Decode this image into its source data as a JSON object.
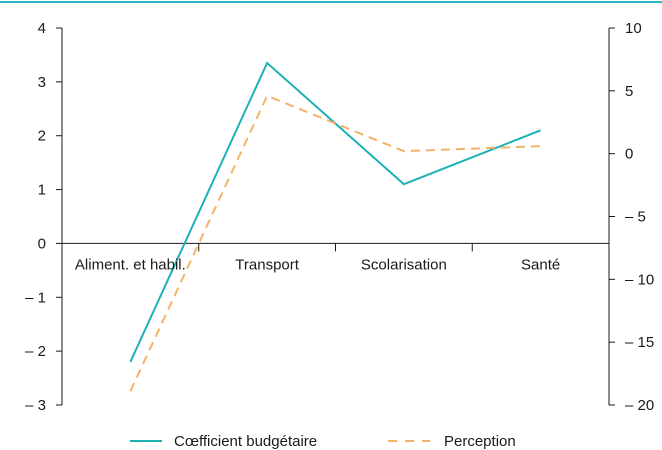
{
  "colors": {
    "frame": "#2ab7c4",
    "series1": "#1bb1b5",
    "series2": "#f4b366",
    "axis": "#1a1a1a"
  },
  "chart_data": {
    "type": "line",
    "categories": [
      "Aliment. et habil.",
      "Transport",
      "Scolarisation",
      "Santé"
    ],
    "series": [
      {
        "name": "Cœfficient budgétaire",
        "axis": "left",
        "style": "solid",
        "values": [
          -2.2,
          3.35,
          1.1,
          2.1
        ]
      },
      {
        "name": "Perception",
        "axis": "right",
        "style": "dashed",
        "values": [
          -18.9,
          4.6,
          0.2,
          0.6
        ]
      }
    ],
    "y_left": {
      "lim": [
        -3,
        4
      ],
      "ticks": [
        4,
        3,
        2,
        1,
        0,
        -1,
        -2,
        -3
      ],
      "tick_labels": [
        "4",
        "3",
        "2",
        "1",
        "0",
        "– 1",
        "– 2",
        "– 3"
      ]
    },
    "y_right": {
      "lim": [
        -20,
        10
      ],
      "ticks": [
        10,
        5,
        0,
        -5,
        -10,
        -15,
        -20
      ],
      "tick_labels": [
        "10",
        "5",
        "0",
        "– 5",
        "– 10",
        "– 15",
        "– 20"
      ]
    },
    "legend_position": "bottom",
    "grid": false
  }
}
